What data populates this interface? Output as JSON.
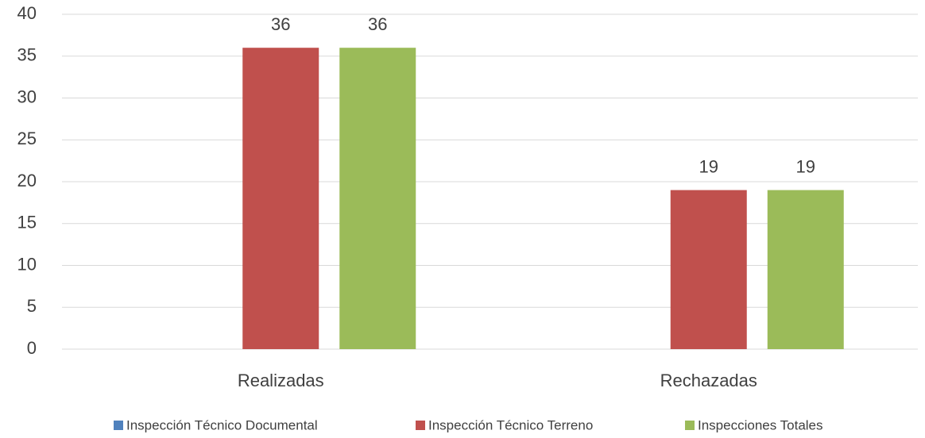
{
  "chart_data": {
    "type": "bar",
    "categories": [
      "Realizadas",
      "Rechazadas"
    ],
    "series": [
      {
        "name": "Inspección Técnico Documental",
        "color": "#4f81bd",
        "values": [
          null,
          null
        ]
      },
      {
        "name": "Inspección Técnico Terreno",
        "color": "#c0504d",
        "values": [
          36,
          19
        ]
      },
      {
        "name": "Inspecciones Totales",
        "color": "#9bbb59",
        "values": [
          36,
          19
        ]
      }
    ],
    "ylim": [
      0,
      40
    ],
    "yticks": [
      0,
      5,
      10,
      15,
      20,
      25,
      30,
      35,
      40
    ],
    "grid": true,
    "data_labels": true,
    "legend": "bottom"
  }
}
